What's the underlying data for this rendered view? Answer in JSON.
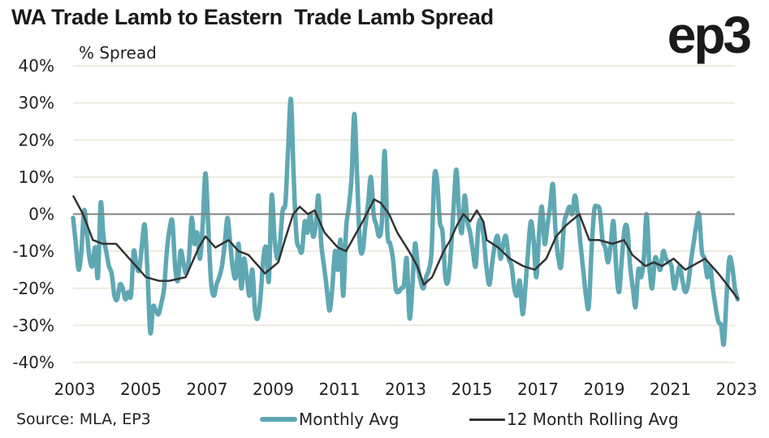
{
  "header": {
    "title": "WA Trade Lamb to Eastern  Trade Lamb Spread",
    "logo": "ep3"
  },
  "footer": {
    "source": "Source: MLA, EP3"
  },
  "colors": {
    "monthly": "#5fa8b3",
    "rolling": "#333333",
    "zero_line": "#808080",
    "grid": "#ecebe0"
  },
  "chart_data": {
    "type": "line",
    "title": "WA Trade Lamb to Eastern  Trade Lamb Spread",
    "xlabel": "",
    "ylabel": "% Spread",
    "ylim": [
      -40,
      40
    ],
    "xlim": [
      2003,
      2023.1
    ],
    "y_ticks": [
      40,
      30,
      20,
      10,
      0,
      -10,
      -20,
      -30,
      -40
    ],
    "y_tick_labels": [
      "40%",
      "30%",
      "20%",
      "10%",
      "0%",
      "-10%",
      "-20%",
      "-30%",
      "-40%"
    ],
    "x_ticks": [
      2003,
      2005,
      2007,
      2009,
      2011,
      2013,
      2015,
      2017,
      2019,
      2021,
      2023
    ],
    "x_tick_labels": [
      "2003",
      "2005",
      "2007",
      "2009",
      "2011",
      "2013",
      "2015",
      "2017",
      "2019",
      "2021",
      "2023"
    ],
    "grid": true,
    "legend": "bottom",
    "series": [
      {
        "name": "Monthly Avg",
        "start": "2003-01",
        "frequency": "monthly",
        "values": [
          -1,
          -8,
          -15,
          -10,
          1,
          -5,
          -12,
          -14,
          -9,
          -17,
          3,
          -6,
          -10,
          -14,
          -16,
          -22,
          -23,
          -19,
          -20,
          -23,
          -21,
          -22,
          -10,
          -14,
          -15,
          -8,
          -3,
          -16,
          -32,
          -25,
          -26,
          -27,
          -24,
          -20,
          -10,
          -4,
          -2,
          -14,
          -18,
          -10,
          -13,
          -16,
          -12,
          -1,
          -8,
          -5,
          -12,
          -3,
          11,
          -3,
          -18,
          -22,
          -19,
          -17,
          -14,
          -8,
          -1,
          -8,
          -15,
          -17,
          -8,
          -20,
          -12,
          -17,
          -22,
          -15,
          -26,
          -28,
          -22,
          -12,
          -9,
          -18,
          5,
          -6,
          -12,
          -8,
          1,
          3,
          18,
          31,
          10,
          -6,
          -9,
          -10,
          -2,
          -5,
          0,
          -6,
          -3,
          5,
          -8,
          -14,
          -20,
          -26,
          -20,
          -10,
          -15,
          -7,
          -22,
          -4,
          2,
          10,
          27,
          10,
          -8,
          -10,
          -3,
          3,
          10,
          0,
          -3,
          -6,
          -2,
          17,
          -5,
          -8,
          -12,
          -20,
          -21,
          -20,
          -19,
          -12,
          -28,
          -20,
          -8,
          -14,
          -18,
          -20,
          -17,
          -15,
          -10,
          10,
          9,
          -2,
          -5,
          -17,
          -18,
          -10,
          2,
          12,
          0,
          -5,
          5,
          -2,
          -5,
          -10,
          -14,
          -3,
          -2,
          -7,
          -15,
          -19,
          -13,
          -8,
          -6,
          -12,
          -8,
          -6,
          -12,
          -14,
          -20,
          -22,
          -18,
          -27,
          -20,
          -10,
          -2,
          -7,
          -17,
          -5,
          2,
          -8,
          -3,
          2,
          8,
          -5,
          -12,
          -14,
          -3,
          0,
          2,
          0,
          5,
          0,
          -8,
          -15,
          -22,
          -25,
          -10,
          1,
          2,
          1,
          -7,
          -9,
          -13,
          -8,
          -2,
          -15,
          -21,
          -12,
          -4,
          -4,
          -14,
          -20,
          -25,
          -15,
          -17,
          -12,
          0,
          -14,
          -20,
          -12,
          -13,
          -15,
          -10,
          -12,
          -13,
          -14,
          -20,
          -17,
          -14,
          -18,
          -21,
          -19,
          -13,
          -8,
          -3,
          0,
          -10,
          -12,
          -17,
          -14,
          -20,
          -25,
          -29,
          -30,
          -35,
          -22,
          -12,
          -14,
          -20,
          -23
        ]
      },
      {
        "name": "12 Month Rolling Avg",
        "points_year_value": [
          [
            2003.0,
            5
          ],
          [
            2003.3,
            0
          ],
          [
            2003.6,
            -7
          ],
          [
            2003.9,
            -8
          ],
          [
            2004.3,
            -8
          ],
          [
            2004.7,
            -12
          ],
          [
            2005.2,
            -17
          ],
          [
            2005.6,
            -18
          ],
          [
            2005.9,
            -18
          ],
          [
            2006.4,
            -17
          ],
          [
            2006.8,
            -9
          ],
          [
            2007.0,
            -6
          ],
          [
            2007.3,
            -9
          ],
          [
            2007.7,
            -7
          ],
          [
            2008.0,
            -10
          ],
          [
            2008.3,
            -11
          ],
          [
            2008.8,
            -16
          ],
          [
            2009.2,
            -13
          ],
          [
            2009.4,
            -7
          ],
          [
            2009.65,
            0
          ],
          [
            2009.85,
            2
          ],
          [
            2010.1,
            0
          ],
          [
            2010.3,
            1
          ],
          [
            2010.6,
            -5
          ],
          [
            2011.0,
            -9
          ],
          [
            2011.25,
            -10
          ],
          [
            2011.5,
            -6
          ],
          [
            2011.75,
            -2
          ],
          [
            2012.1,
            4
          ],
          [
            2012.3,
            3
          ],
          [
            2012.55,
            0
          ],
          [
            2012.8,
            -5
          ],
          [
            2013.15,
            -10
          ],
          [
            2013.4,
            -14
          ],
          [
            2013.6,
            -19
          ],
          [
            2013.85,
            -17
          ],
          [
            2014.1,
            -12
          ],
          [
            2014.2,
            -10
          ],
          [
            2014.4,
            -7
          ],
          [
            2014.6,
            -3
          ],
          [
            2014.8,
            0
          ],
          [
            2015.0,
            -2
          ],
          [
            2015.2,
            1
          ],
          [
            2015.4,
            -2
          ],
          [
            2015.5,
            -7
          ],
          [
            2015.85,
            -9
          ],
          [
            2016.2,
            -12
          ],
          [
            2016.6,
            -14
          ],
          [
            2016.95,
            -15
          ],
          [
            2017.3,
            -12
          ],
          [
            2017.6,
            -6
          ],
          [
            2017.9,
            -3
          ],
          [
            2018.3,
            0
          ],
          [
            2018.6,
            -7
          ],
          [
            2018.9,
            -7
          ],
          [
            2019.3,
            -8
          ],
          [
            2019.65,
            -7
          ],
          [
            2019.9,
            -11
          ],
          [
            2020.3,
            -14
          ],
          [
            2020.55,
            -13
          ],
          [
            2020.8,
            -14
          ],
          [
            2021.15,
            -12
          ],
          [
            2021.5,
            -15
          ],
          [
            2022.1,
            -12
          ],
          [
            2022.5,
            -16
          ],
          [
            2022.85,
            -20
          ],
          [
            2023.1,
            -23
          ]
        ]
      }
    ]
  }
}
